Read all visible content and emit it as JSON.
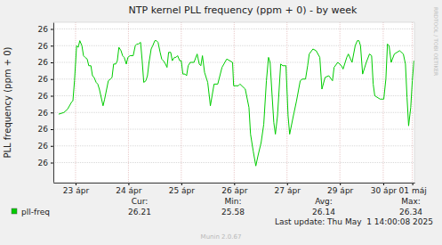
{
  "chart_data": {
    "type": "line",
    "title": "NTP kernel PLL frequency (ppm + 0) - by week",
    "y_label": "PLL frequency (ppm + 0)",
    "x": [
      -0.32,
      -0.22,
      -0.15,
      -0.08,
      -0.05,
      -0.02,
      0.02,
      0.05,
      0.08,
      0.12,
      0.15,
      0.18,
      0.22,
      0.25,
      0.29,
      0.32,
      0.35,
      0.39,
      0.42,
      0.45,
      0.52,
      0.55,
      0.62,
      0.66,
      0.69,
      0.72,
      0.76,
      0.79,
      0.82,
      0.86,
      0.89,
      0.92,
      0.96,
      0.99,
      1.03,
      1.06,
      1.09,
      1.13,
      1.16,
      1.19,
      1.23,
      1.26,
      1.29,
      1.33,
      1.36,
      1.39,
      1.43,
      1.46,
      1.5,
      1.53,
      1.56,
      1.6,
      1.63,
      1.66,
      1.7,
      1.73,
      1.76,
      1.8,
      1.83,
      1.87,
      1.9,
      1.93,
      1.97,
      2.0,
      2.03,
      2.07,
      2.1,
      2.13,
      2.17,
      2.24,
      2.3,
      2.34,
      2.37,
      2.4,
      2.44,
      2.5,
      2.55,
      2.62,
      2.69,
      2.77,
      2.86,
      2.97,
      2.99,
      3.08,
      3.11,
      3.21,
      3.28,
      3.31,
      3.36,
      3.41,
      3.45,
      3.51,
      3.56,
      3.61,
      3.65,
      3.68,
      3.71,
      3.75,
      3.78,
      3.82,
      3.88,
      3.92,
      3.98,
      4.02,
      4.05,
      4.12,
      4.18,
      4.25,
      4.29,
      4.35,
      4.39,
      4.42,
      4.49,
      4.55,
      4.62,
      4.66,
      4.72,
      4.79,
      4.86,
      4.89,
      4.96,
      5.03,
      5.06,
      5.13,
      5.16,
      5.23,
      5.29,
      5.33,
      5.36,
      5.39,
      5.43,
      5.5,
      5.56,
      5.6,
      5.63,
      5.66,
      5.76,
      5.83,
      5.87,
      5.9,
      5.93,
      5.97,
      6.03,
      6.13,
      6.2,
      6.24,
      6.27,
      6.3,
      6.34,
      6.37,
      6.4
    ],
    "series": [
      {
        "name": "pll-freq",
        "color": "#00cc00",
        "values": [
          25.89,
          25.9,
          25.92,
          25.96,
          25.97,
          26.09,
          26.3,
          26.29,
          26.33,
          26.3,
          26.24,
          26.23,
          26.22,
          26.18,
          26.18,
          26.12,
          26.11,
          26.08,
          26.07,
          26.04,
          25.94,
          25.98,
          26.09,
          26.1,
          26.11,
          26.19,
          26.19,
          26.21,
          26.29,
          26.27,
          26.24,
          26.23,
          26.19,
          26.23,
          26.24,
          26.24,
          26.24,
          26.3,
          26.31,
          26.31,
          26.32,
          26.21,
          26.08,
          26.09,
          26.12,
          26.2,
          26.28,
          26.3,
          26.33,
          26.33,
          26.32,
          26.26,
          26.22,
          26.21,
          26.19,
          26.17,
          26.26,
          26.26,
          26.21,
          26.23,
          26.23,
          26.24,
          26.21,
          26.21,
          26.13,
          26.13,
          26.12,
          26.18,
          26.2,
          26.2,
          26.25,
          26.19,
          26.18,
          26.24,
          26.14,
          26.08,
          25.94,
          26.07,
          26.07,
          26.17,
          26.22,
          26.2,
          26.06,
          26.06,
          26.07,
          26.04,
          25.93,
          25.77,
          25.67,
          25.58,
          25.64,
          25.72,
          25.83,
          26.09,
          26.23,
          26.2,
          26.04,
          25.84,
          25.77,
          25.88,
          26.19,
          26.18,
          26.18,
          25.88,
          25.77,
          25.88,
          25.97,
          26.09,
          26.1,
          26.1,
          26.18,
          26.25,
          26.28,
          26.27,
          26.23,
          26.04,
          26.11,
          26.12,
          26.09,
          26.17,
          26.2,
          26.18,
          26.16,
          26.23,
          26.25,
          26.2,
          26.3,
          26.33,
          26.33,
          26.3,
          26.13,
          26.2,
          26.25,
          26.24,
          26.07,
          26.0,
          25.98,
          25.98,
          26.1,
          26.31,
          26.3,
          26.2,
          26.25,
          26.27,
          26.25,
          26.19,
          25.99,
          25.82,
          25.93,
          26.09,
          26.21
        ]
      }
    ],
    "xlim": [
      -0.42,
      6.41
    ],
    "xticks": [
      {
        "value": 0,
        "label": "23 ápr"
      },
      {
        "value": 1,
        "label": "24 ápr"
      },
      {
        "value": 2,
        "label": "25 ápr"
      },
      {
        "value": 3,
        "label": "26 ápr"
      },
      {
        "value": 4,
        "label": "27 ápr"
      },
      {
        "value": 5,
        "label": "29 ápr"
      },
      {
        "value": 5.82,
        "label": "30 ápr"
      },
      {
        "value": 6.37,
        "label": "01 máj"
      }
    ],
    "ylim": [
      25.48,
      26.44
    ],
    "yticks": [
      {
        "value": 25.6,
        "label": "26"
      },
      {
        "value": 25.7,
        "label": "26"
      },
      {
        "value": 25.8,
        "label": "26"
      },
      {
        "value": 25.9,
        "label": "26"
      },
      {
        "value": 26.0,
        "label": "26"
      },
      {
        "value": 26.1,
        "label": "26"
      },
      {
        "value": 26.2,
        "label": "26"
      },
      {
        "value": 26.3,
        "label": "26"
      },
      {
        "value": 26.4,
        "label": "26"
      }
    ],
    "grid": true,
    "legend": "bottom",
    "stats_headers": [
      "Cur:",
      "Min:",
      "Avg:",
      "Max:"
    ],
    "stats_values": [
      26.21,
      25.58,
      26.14,
      26.34
    ],
    "last_update": "Last update: Thu May  1 14:00:08 2025",
    "footer": "Munin 2.0.67",
    "watermark": "RRDTOOL / TOBI OETIKER"
  }
}
